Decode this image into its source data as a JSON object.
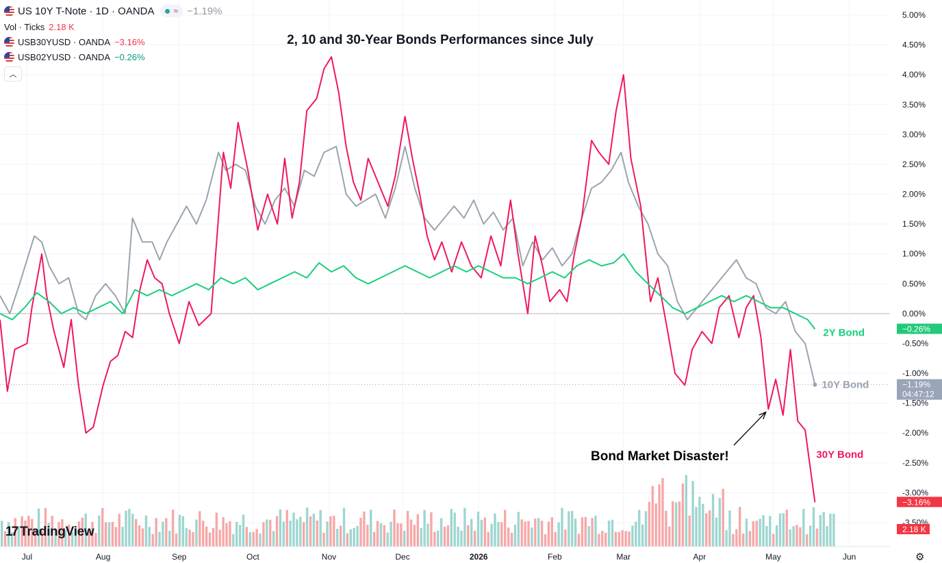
{
  "legend": {
    "main_title": "US 10Y T-Note · 1D · OANDA",
    "main_change": "−1.19%",
    "vol_label": "Vol · Ticks",
    "vol_value": "2.18 K",
    "series2_title": "USB30YUSD · OANDA",
    "series2_change": "−3.16%",
    "series3_title": "USB02YUSD · OANDA",
    "series3_change": "−0.26%",
    "collapse_icon": "chevron-up-icon"
  },
  "logo_text": "TradingView",
  "settings_icon": "gear-icon",
  "colors": {
    "bond10": "#9aa3b0",
    "bond30": "#f0185a",
    "bond2": "#19cf7b",
    "vol_up": "#9ed6d0",
    "vol_down": "#f6a8a8",
    "grid": "#f0f3fa"
  },
  "chart_data": {
    "type": "line",
    "title": "2, 10 and 30-Year Bonds Performances since July",
    "xlabel": "",
    "ylabel": "",
    "ylim": [
      -3.5,
      5.0
    ],
    "grid": true,
    "x_ticks": [
      "Jul",
      "Aug",
      "Sep",
      "Oct",
      "Nov",
      "Dec",
      "2026",
      "Feb",
      "Mar",
      "Apr",
      "May",
      "Jun"
    ],
    "y_ticks": [
      "5.00%",
      "4.50%",
      "4.00%",
      "3.50%",
      "3.00%",
      "2.50%",
      "2.00%",
      "1.50%",
      "1.00%",
      "0.50%",
      "0.00%",
      "-0.50%",
      "-1.00%",
      "-1.50%",
      "-2.00%",
      "-2.50%",
      "-3.00%",
      "-3.50%"
    ],
    "x_range": [
      "2025-06-20",
      "2026-06-17"
    ],
    "series": [
      {
        "name": "30Y Bond",
        "last_label": "−3.16%",
        "points": [
          [
            "2025-06-20",
            -0.1
          ],
          [
            "2025-06-23",
            -1.3
          ],
          [
            "2025-06-26",
            -0.6
          ],
          [
            "2025-07-01",
            -0.5
          ],
          [
            "2025-07-03",
            0.1
          ],
          [
            "2025-07-07",
            1.0
          ],
          [
            "2025-07-09",
            0.3
          ],
          [
            "2025-07-12",
            -0.3
          ],
          [
            "2025-07-16",
            -0.9
          ],
          [
            "2025-07-19",
            -0.1
          ],
          [
            "2025-07-22",
            -1.2
          ],
          [
            "2025-07-25",
            -2.0
          ],
          [
            "2025-07-28",
            -1.9
          ],
          [
            "2025-08-01",
            -1.2
          ],
          [
            "2025-08-04",
            -0.8
          ],
          [
            "2025-08-07",
            -0.7
          ],
          [
            "2025-08-10",
            -0.3
          ],
          [
            "2025-08-13",
            -0.4
          ],
          [
            "2025-08-16",
            0.4
          ],
          [
            "2025-08-19",
            0.9
          ],
          [
            "2025-08-22",
            0.6
          ],
          [
            "2025-08-25",
            0.5
          ],
          [
            "2025-08-28",
            0.0
          ],
          [
            "2025-09-01",
            -0.5
          ],
          [
            "2025-09-05",
            0.2
          ],
          [
            "2025-09-09",
            -0.2
          ],
          [
            "2025-09-14",
            0.0
          ],
          [
            "2025-09-19",
            2.7
          ],
          [
            "2025-09-22",
            2.1
          ],
          [
            "2025-09-25",
            3.2
          ],
          [
            "2025-09-29",
            2.4
          ],
          [
            "2025-10-03",
            1.4
          ],
          [
            "2025-10-07",
            2.0
          ],
          [
            "2025-10-11",
            1.5
          ],
          [
            "2025-10-14",
            2.6
          ],
          [
            "2025-10-17",
            1.6
          ],
          [
            "2025-10-20",
            2.2
          ],
          [
            "2025-10-23",
            3.4
          ],
          [
            "2025-10-27",
            3.6
          ],
          [
            "2025-10-30",
            4.1
          ],
          [
            "2025-11-02",
            4.3
          ],
          [
            "2025-11-05",
            3.7
          ],
          [
            "2025-11-08",
            2.8
          ],
          [
            "2025-11-11",
            2.2
          ],
          [
            "2025-11-14",
            1.9
          ],
          [
            "2025-11-17",
            2.6
          ],
          [
            "2025-11-21",
            2.2
          ],
          [
            "2025-11-25",
            1.8
          ],
          [
            "2025-11-28",
            2.3
          ],
          [
            "2025-12-02",
            3.3
          ],
          [
            "2025-12-05",
            2.6
          ],
          [
            "2025-12-08",
            2.0
          ],
          [
            "2025-12-11",
            1.3
          ],
          [
            "2025-12-14",
            0.9
          ],
          [
            "2025-12-17",
            1.2
          ],
          [
            "2025-12-21",
            0.7
          ],
          [
            "2025-12-25",
            1.2
          ],
          [
            "2025-12-29",
            0.8
          ],
          [
            "2026-01-02",
            0.6
          ],
          [
            "2026-01-06",
            1.3
          ],
          [
            "2026-01-10",
            0.8
          ],
          [
            "2026-01-14",
            1.9
          ],
          [
            "2026-01-17",
            1.0
          ],
          [
            "2026-01-21",
            0.0
          ],
          [
            "2026-01-24",
            1.3
          ],
          [
            "2026-01-27",
            0.8
          ],
          [
            "2026-01-30",
            0.2
          ],
          [
            "2026-02-03",
            0.4
          ],
          [
            "2026-02-06",
            0.2
          ],
          [
            "2026-02-09",
            1.0
          ],
          [
            "2026-02-12",
            1.6
          ],
          [
            "2026-02-16",
            2.9
          ],
          [
            "2026-02-19",
            2.7
          ],
          [
            "2026-02-23",
            2.5
          ],
          [
            "2026-02-26",
            3.4
          ],
          [
            "2026-03-01",
            4.0
          ],
          [
            "2026-03-04",
            2.6
          ],
          [
            "2026-03-08",
            1.8
          ],
          [
            "2026-03-12",
            0.2
          ],
          [
            "2026-03-15",
            0.6
          ],
          [
            "2026-03-19",
            -0.3
          ],
          [
            "2026-03-22",
            -1.0
          ],
          [
            "2026-03-26",
            -1.2
          ],
          [
            "2026-03-29",
            -0.6
          ],
          [
            "2026-04-02",
            -0.3
          ],
          [
            "2026-04-06",
            -0.5
          ],
          [
            "2026-04-09",
            0.1
          ],
          [
            "2026-04-13",
            0.3
          ],
          [
            "2026-04-17",
            -0.4
          ],
          [
            "2026-04-20",
            0.1
          ],
          [
            "2026-04-23",
            0.3
          ],
          [
            "2026-04-26",
            -0.4
          ],
          [
            "2026-04-29",
            -1.6
          ],
          [
            "2026-05-02",
            -1.1
          ],
          [
            "2026-05-05",
            -1.7
          ],
          [
            "2026-05-08",
            -0.6
          ],
          [
            "2026-05-11",
            -1.8
          ],
          [
            "2026-05-14",
            -1.95
          ],
          [
            "2026-05-18",
            -3.16
          ]
        ]
      },
      {
        "name": "10Y Bond",
        "last_label": "−1.19%",
        "points": [
          [
            "2025-06-20",
            0.3
          ],
          [
            "2025-06-24",
            0.0
          ],
          [
            "2025-06-28",
            0.5
          ],
          [
            "2025-07-01",
            0.9
          ],
          [
            "2025-07-04",
            1.3
          ],
          [
            "2025-07-07",
            1.2
          ],
          [
            "2025-07-10",
            0.8
          ],
          [
            "2025-07-14",
            0.5
          ],
          [
            "2025-07-18",
            0.6
          ],
          [
            "2025-07-22",
            0.0
          ],
          [
            "2025-07-25",
            -0.1
          ],
          [
            "2025-07-29",
            0.3
          ],
          [
            "2025-08-02",
            0.5
          ],
          [
            "2025-08-06",
            0.3
          ],
          [
            "2025-08-10",
            0.0
          ],
          [
            "2025-08-13",
            1.6
          ],
          [
            "2025-08-17",
            1.2
          ],
          [
            "2025-08-21",
            1.2
          ],
          [
            "2025-08-24",
            0.9
          ],
          [
            "2025-08-27",
            1.2
          ],
          [
            "2025-08-31",
            1.5
          ],
          [
            "2025-09-04",
            1.8
          ],
          [
            "2025-09-08",
            1.5
          ],
          [
            "2025-09-12",
            1.9
          ],
          [
            "2025-09-17",
            2.7
          ],
          [
            "2025-09-20",
            2.4
          ],
          [
            "2025-09-24",
            2.5
          ],
          [
            "2025-09-28",
            2.4
          ],
          [
            "2025-10-02",
            1.8
          ],
          [
            "2025-10-06",
            1.5
          ],
          [
            "2025-10-10",
            1.9
          ],
          [
            "2025-10-14",
            2.1
          ],
          [
            "2025-10-18",
            1.8
          ],
          [
            "2025-10-22",
            2.4
          ],
          [
            "2025-10-26",
            2.3
          ],
          [
            "2025-10-30",
            2.7
          ],
          [
            "2025-11-04",
            2.8
          ],
          [
            "2025-11-08",
            2.0
          ],
          [
            "2025-11-12",
            1.8
          ],
          [
            "2025-11-16",
            1.9
          ],
          [
            "2025-11-20",
            2.0
          ],
          [
            "2025-11-24",
            1.6
          ],
          [
            "2025-11-28",
            2.1
          ],
          [
            "2025-12-02",
            2.8
          ],
          [
            "2025-12-06",
            2.1
          ],
          [
            "2025-12-10",
            1.6
          ],
          [
            "2025-12-14",
            1.4
          ],
          [
            "2025-12-18",
            1.6
          ],
          [
            "2025-12-22",
            1.8
          ],
          [
            "2025-12-26",
            1.6
          ],
          [
            "2025-12-30",
            1.9
          ],
          [
            "2026-01-03",
            1.5
          ],
          [
            "2026-01-07",
            1.7
          ],
          [
            "2026-01-11",
            1.4
          ],
          [
            "2026-01-15",
            1.6
          ],
          [
            "2026-01-19",
            0.8
          ],
          [
            "2026-01-23",
            1.2
          ],
          [
            "2026-01-27",
            0.9
          ],
          [
            "2026-01-31",
            1.1
          ],
          [
            "2026-02-04",
            0.8
          ],
          [
            "2026-02-08",
            1.0
          ],
          [
            "2026-02-12",
            1.6
          ],
          [
            "2026-02-16",
            2.1
          ],
          [
            "2026-02-20",
            2.2
          ],
          [
            "2026-02-24",
            2.4
          ],
          [
            "2026-02-28",
            2.7
          ],
          [
            "2026-03-03",
            2.2
          ],
          [
            "2026-03-07",
            1.8
          ],
          [
            "2026-03-11",
            1.5
          ],
          [
            "2026-03-15",
            1.0
          ],
          [
            "2026-03-19",
            0.8
          ],
          [
            "2026-03-23",
            0.2
          ],
          [
            "2026-03-27",
            -0.1
          ],
          [
            "2026-03-31",
            0.1
          ],
          [
            "2026-04-04",
            0.3
          ],
          [
            "2026-04-08",
            0.5
          ],
          [
            "2026-04-12",
            0.7
          ],
          [
            "2026-04-16",
            0.9
          ],
          [
            "2026-04-20",
            0.6
          ],
          [
            "2026-04-24",
            0.5
          ],
          [
            "2026-04-28",
            0.1
          ],
          [
            "2026-05-02",
            0.0
          ],
          [
            "2026-05-06",
            0.2
          ],
          [
            "2026-05-10",
            -0.3
          ],
          [
            "2026-05-14",
            -0.5
          ],
          [
            "2026-05-18",
            -1.19
          ]
        ]
      },
      {
        "name": "2Y Bond",
        "last_label": "−0.26%",
        "points": [
          [
            "2025-06-20",
            0.0
          ],
          [
            "2025-06-25",
            -0.1
          ],
          [
            "2025-06-30",
            0.1
          ],
          [
            "2025-07-05",
            0.35
          ],
          [
            "2025-07-10",
            0.2
          ],
          [
            "2025-07-15",
            0.0
          ],
          [
            "2025-07-20",
            0.1
          ],
          [
            "2025-07-25",
            0.0
          ],
          [
            "2025-07-30",
            0.1
          ],
          [
            "2025-08-04",
            0.2
          ],
          [
            "2025-08-09",
            0.0
          ],
          [
            "2025-08-14",
            0.4
          ],
          [
            "2025-08-19",
            0.3
          ],
          [
            "2025-08-24",
            0.4
          ],
          [
            "2025-08-29",
            0.3
          ],
          [
            "2025-09-03",
            0.4
          ],
          [
            "2025-09-08",
            0.5
          ],
          [
            "2025-09-13",
            0.4
          ],
          [
            "2025-09-18",
            0.6
          ],
          [
            "2025-09-23",
            0.5
          ],
          [
            "2025-09-28",
            0.6
          ],
          [
            "2025-10-03",
            0.4
          ],
          [
            "2025-10-08",
            0.5
          ],
          [
            "2025-10-13",
            0.6
          ],
          [
            "2025-10-18",
            0.7
          ],
          [
            "2025-10-23",
            0.6
          ],
          [
            "2025-10-28",
            0.85
          ],
          [
            "2025-11-02",
            0.7
          ],
          [
            "2025-11-07",
            0.8
          ],
          [
            "2025-11-12",
            0.6
          ],
          [
            "2025-11-17",
            0.5
          ],
          [
            "2025-11-22",
            0.6
          ],
          [
            "2025-11-27",
            0.7
          ],
          [
            "2025-12-02",
            0.8
          ],
          [
            "2025-12-07",
            0.7
          ],
          [
            "2025-12-12",
            0.6
          ],
          [
            "2025-12-17",
            0.7
          ],
          [
            "2025-12-22",
            0.8
          ],
          [
            "2025-12-27",
            0.7
          ],
          [
            "2026-01-01",
            0.8
          ],
          [
            "2026-01-06",
            0.7
          ],
          [
            "2026-01-11",
            0.6
          ],
          [
            "2026-01-16",
            0.6
          ],
          [
            "2026-01-21",
            0.5
          ],
          [
            "2026-01-26",
            0.6
          ],
          [
            "2026-01-31",
            0.7
          ],
          [
            "2026-02-05",
            0.6
          ],
          [
            "2026-02-10",
            0.8
          ],
          [
            "2026-02-15",
            0.9
          ],
          [
            "2026-02-20",
            0.8
          ],
          [
            "2026-02-25",
            0.85
          ],
          [
            "2026-03-01",
            1.0
          ],
          [
            "2026-03-06",
            0.7
          ],
          [
            "2026-03-11",
            0.5
          ],
          [
            "2026-03-16",
            0.3
          ],
          [
            "2026-03-21",
            0.1
          ],
          [
            "2026-03-26",
            0.0
          ],
          [
            "2026-03-31",
            0.1
          ],
          [
            "2026-04-05",
            0.2
          ],
          [
            "2026-04-10",
            0.3
          ],
          [
            "2026-04-15",
            0.2
          ],
          [
            "2026-04-20",
            0.3
          ],
          [
            "2026-04-25",
            0.2
          ],
          [
            "2026-04-30",
            0.1
          ],
          [
            "2026-05-05",
            0.1
          ],
          [
            "2026-05-10",
            0.0
          ],
          [
            "2026-05-15",
            -0.1
          ],
          [
            "2026-05-18",
            -0.26
          ]
        ]
      }
    ],
    "annotations": [
      {
        "text": "Bond Market Disaster!",
        "arrow_from": [
          "2026-03-10",
          -2.25
        ],
        "arrow_to": [
          "2026-04-28",
          -1.65
        ]
      }
    ],
    "price_labels": {
      "countdown": "04:47:12",
      "volume": "2.18 K"
    }
  }
}
